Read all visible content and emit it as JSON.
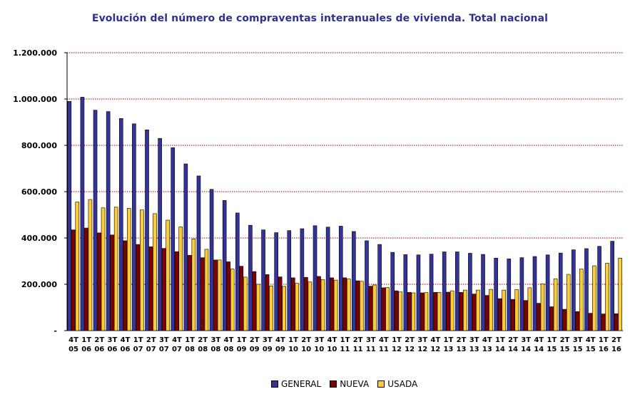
{
  "chart_data": {
    "type": "bar",
    "title": "Evolución del número de compraventas interanuales de vivienda. Total nacional",
    "xlabel": "",
    "ylabel": "",
    "ylim": [
      0,
      1200000
    ],
    "yticks": [
      0,
      200000,
      400000,
      600000,
      800000,
      1000000,
      1200000
    ],
    "ytick_labels": [
      "-",
      "200.000",
      "400.000",
      "600.000",
      "800.000",
      "1.000.000",
      "1.200.000"
    ],
    "grid": true,
    "legend_position": "bottom-center",
    "categories": [
      {
        "q": "4T",
        "y": "05"
      },
      {
        "q": "1T",
        "y": "06"
      },
      {
        "q": "2T",
        "y": "06"
      },
      {
        "q": "3T",
        "y": "06"
      },
      {
        "q": "4T",
        "y": "06"
      },
      {
        "q": "1T",
        "y": "07"
      },
      {
        "q": "2T",
        "y": "07"
      },
      {
        "q": "3T",
        "y": "07"
      },
      {
        "q": "4T",
        "y": "07"
      },
      {
        "q": "1T",
        "y": "08"
      },
      {
        "q": "2T",
        "y": "08"
      },
      {
        "q": "3T",
        "y": "08"
      },
      {
        "q": "4T",
        "y": "08"
      },
      {
        "q": "1T",
        "y": "09"
      },
      {
        "q": "2T",
        "y": "09"
      },
      {
        "q": "3T",
        "y": "09"
      },
      {
        "q": "4T",
        "y": "09"
      },
      {
        "q": "1T",
        "y": "10"
      },
      {
        "q": "2T",
        "y": "10"
      },
      {
        "q": "3T",
        "y": "10"
      },
      {
        "q": "4T",
        "y": "10"
      },
      {
        "q": "1T",
        "y": "11"
      },
      {
        "q": "2T",
        "y": "11"
      },
      {
        "q": "3T",
        "y": "11"
      },
      {
        "q": "4T",
        "y": "11"
      },
      {
        "q": "1T",
        "y": "12"
      },
      {
        "q": "2T",
        "y": "12"
      },
      {
        "q": "3T",
        "y": "12"
      },
      {
        "q": "4T",
        "y": "12"
      },
      {
        "q": "1T",
        "y": "13"
      },
      {
        "q": "2T",
        "y": "13"
      },
      {
        "q": "3T",
        "y": "13"
      },
      {
        "q": "4T",
        "y": "13"
      },
      {
        "q": "1T",
        "y": "14"
      },
      {
        "q": "2T",
        "y": "14"
      },
      {
        "q": "3T",
        "y": "14"
      },
      {
        "q": "4T",
        "y": "14"
      },
      {
        "q": "1T",
        "y": "15"
      },
      {
        "q": "2T",
        "y": "15"
      },
      {
        "q": "3T",
        "y": "15"
      },
      {
        "q": "4T",
        "y": "15"
      },
      {
        "q": "1T",
        "y": "16"
      },
      {
        "q": "2T",
        "y": "16"
      }
    ],
    "series": [
      {
        "name": "GENERAL",
        "color": "#333399",
        "values": [
          990000,
          1008000,
          952000,
          946000,
          916000,
          893000,
          867000,
          830000,
          790000,
          720000,
          668000,
          610000,
          562000,
          508000,
          455000,
          435000,
          423000,
          432000,
          440000,
          453000,
          447000,
          451000,
          428000,
          388000,
          372000,
          338000,
          328000,
          327000,
          330000,
          340000,
          340000,
          334000,
          329000,
          313000,
          310000,
          315000,
          320000,
          327000,
          335000,
          349000,
          354000,
          364000,
          386000
        ]
      },
      {
        "name": "NUEVA",
        "color": "#800000",
        "values": [
          435000,
          443000,
          422000,
          413000,
          388000,
          372000,
          362000,
          355000,
          341000,
          325000,
          315000,
          305000,
          297000,
          278000,
          255000,
          242000,
          232000,
          228000,
          230000,
          234000,
          228000,
          228000,
          215000,
          192000,
          185000,
          172000,
          165000,
          163000,
          165000,
          166000,
          165000,
          158000,
          152000,
          138000,
          135000,
          130000,
          118000,
          103000,
          92000,
          82000,
          75000,
          72000,
          73000
        ]
      },
      {
        "name": "USADA",
        "color": "#ffcc33",
        "values": [
          555000,
          566000,
          530000,
          533000,
          528000,
          521000,
          505000,
          477000,
          448000,
          396000,
          351000,
          305000,
          266000,
          231000,
          200000,
          193000,
          191000,
          204000,
          210000,
          220000,
          218000,
          223000,
          213000,
          197000,
          186000,
          167000,
          163000,
          164000,
          165000,
          172000,
          175000,
          175000,
          178000,
          175000,
          177000,
          185000,
          202000,
          224000,
          243000,
          266000,
          280000,
          291000,
          313000
        ]
      }
    ]
  }
}
